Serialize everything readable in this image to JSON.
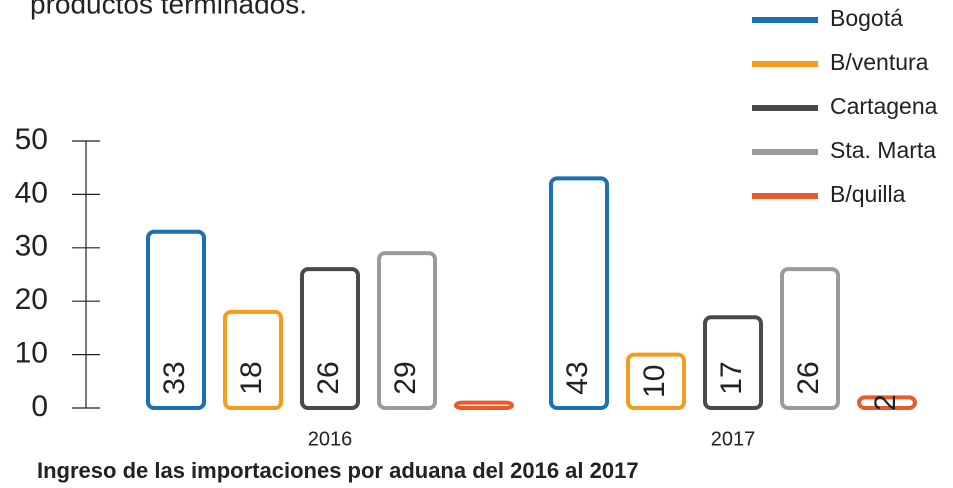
{
  "chart_data": {
    "type": "bar",
    "subtitle": "productos terminados.",
    "title": "Ingreso de las importaciones por aduana del 2016 al 2017",
    "categories": [
      "2016",
      "2017"
    ],
    "series": [
      {
        "name": "Bogotá",
        "color": "#1a6fb5",
        "values": [
          33,
          43
        ]
      },
      {
        "name": "B/ventura",
        "color": "#f39c1f",
        "values": [
          18,
          10
        ]
      },
      {
        "name": "Cartagena",
        "color": "#4a4a4a",
        "values": [
          26,
          17
        ]
      },
      {
        "name": "Sta. Marta",
        "color": "#9b9b9b",
        "values": [
          29,
          26
        ]
      },
      {
        "name": "B/quilla",
        "color": "#e85a2a",
        "values": [
          1,
          2
        ],
        "value_labels": [
          null,
          "2"
        ]
      }
    ],
    "ylim": [
      0,
      50
    ],
    "yticks": [
      0,
      10,
      20,
      30,
      40,
      50
    ],
    "legend": "top-right"
  }
}
